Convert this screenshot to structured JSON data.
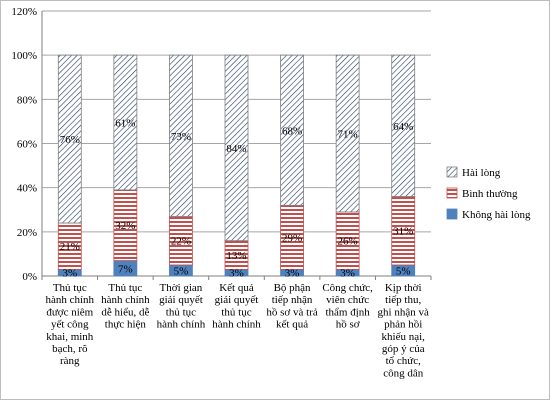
{
  "chart_data": {
    "type": "bar",
    "stacked": true,
    "percent_stacked": true,
    "categories": [
      [
        "Thủ tục",
        "hành chính",
        "được niêm",
        "yết công",
        "khai, minh",
        "bạch, rõ",
        "ràng"
      ],
      [
        "Thủ tục",
        "hành chính",
        "dễ hiểu, dễ",
        "thực hiện"
      ],
      [
        "Thời gian",
        "giải quyết",
        "thủ tục",
        "hành chính"
      ],
      [
        "Kết quả",
        "giải quyết",
        "thủ tục",
        "hành chính"
      ],
      [
        "Bộ phận",
        "tiếp nhận",
        "hồ sơ và trả",
        "kết quả"
      ],
      [
        "Công chức,",
        "viên chức",
        "thẩm định",
        "hồ sơ"
      ],
      [
        "Kịp thời",
        "tiếp thu,",
        "ghi nhận và",
        "phản hồi",
        "khiếu nại,",
        "góp ý của",
        "tổ chức,",
        "công dân"
      ]
    ],
    "series": [
      {
        "name": "Không hài lòng",
        "values": [
          3,
          7,
          5,
          3,
          3,
          3,
          5
        ],
        "labels": [
          "3%",
          "7%",
          "5%",
          "3%",
          "3%",
          "3%",
          "5%"
        ]
      },
      {
        "name": "Bình thường",
        "values": [
          21,
          32,
          22,
          13,
          29,
          26,
          31
        ],
        "labels": [
          "21%",
          "32%",
          "22%",
          "13%",
          "29%",
          "26%",
          "31%"
        ]
      },
      {
        "name": "Hài lòng",
        "values": [
          76,
          61,
          73,
          84,
          68,
          71,
          64
        ],
        "labels": [
          "76%",
          "61%",
          "73%",
          "84%",
          "68%",
          "71%",
          "64%"
        ]
      }
    ],
    "yticks": [
      "0%",
      "20%",
      "40%",
      "60%",
      "80%",
      "100%",
      "120%"
    ],
    "ylim": [
      0,
      120
    ],
    "grid": true,
    "legend_position": "right",
    "legend_order": [
      "Hài lòng",
      "Bình thường",
      "Không hài lòng"
    ],
    "colors": {
      "Không hài lòng": "#4f81bd",
      "Bình thường": "#c0504d",
      "Hài lòng": "#1f3864"
    }
  }
}
